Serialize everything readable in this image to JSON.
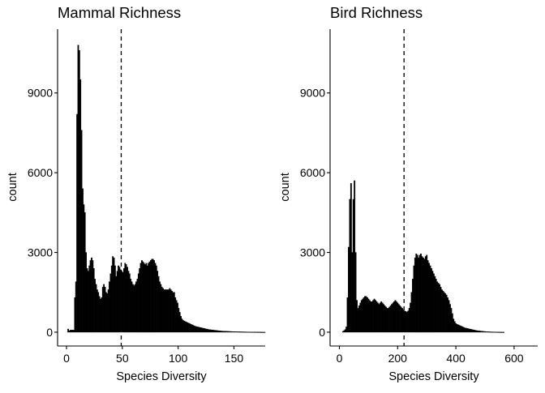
{
  "chart_data": [
    {
      "type": "bar",
      "title": "Mammal Richness",
      "xlabel": "Species Diversity",
      "ylabel": "count",
      "xlim": [
        -8,
        178
      ],
      "ylim": [
        -520,
        11400
      ],
      "xticks": [
        "0",
        "50",
        "100",
        "150"
      ],
      "xtick_values": [
        0,
        50,
        100,
        150
      ],
      "yticks": [
        "0",
        "3000",
        "6000",
        "9000"
      ],
      "ytick_values": [
        0,
        3000,
        6000,
        9000
      ],
      "reference_line_x": 49,
      "reference_line_style": "dashed",
      "bin_width": 1,
      "series": [
        {
          "x_start": 0,
          "values": [
            0,
            120,
            50,
            80,
            80,
            80,
            80,
            1300,
            1900,
            8200,
            10800,
            10600,
            9500,
            7600,
            5400,
            4800,
            4500,
            3000,
            2400,
            2300,
            2500,
            2700,
            2800,
            2700,
            2400,
            2000,
            1800,
            1600,
            1500,
            1350,
            1250,
            1300,
            1700,
            1800,
            1700,
            1500,
            1450,
            1600,
            1900,
            2200,
            2500,
            2850,
            2800,
            2500,
            2100,
            2300,
            2500,
            2450,
            2350,
            2300,
            2250,
            2400,
            2600,
            2550,
            2450,
            2300,
            2200,
            2000,
            1900,
            1800,
            1750,
            1800,
            1900,
            2000,
            2200,
            2400,
            2600,
            2700,
            2650,
            2600,
            2550,
            2600,
            2500,
            2600,
            2650,
            2700,
            2750,
            2750,
            2700,
            2600,
            2500,
            2300,
            2100,
            1900,
            1800,
            1700,
            1650,
            1600,
            1600,
            1600,
            1600,
            1600,
            1650,
            1600,
            1550,
            1500,
            1500,
            1300,
            1200,
            1100,
            900,
            750,
            600,
            500,
            450,
            420,
            400,
            380,
            360,
            340,
            320,
            300,
            280,
            260,
            240,
            220,
            210,
            200,
            190,
            180,
            170,
            160,
            150,
            140,
            130,
            120,
            110,
            100,
            95,
            90,
            85,
            80,
            75,
            70,
            65,
            60,
            55,
            50,
            45,
            42,
            40,
            38,
            36,
            34,
            32,
            30,
            28,
            26,
            24,
            22,
            20,
            19,
            18,
            17,
            16,
            15,
            14,
            13,
            12,
            11,
            10,
            9,
            8,
            8,
            7,
            7,
            6,
            6,
            5,
            5,
            4,
            4,
            3,
            3,
            2,
            2,
            2,
            1
          ]
        }
      ]
    },
    {
      "type": "bar",
      "title": "Bird Richness",
      "xlabel": "Species Diversity",
      "ylabel": "count",
      "xlim": [
        -32,
        681
      ],
      "ylim": [
        -520,
        11400
      ],
      "xticks": [
        "0",
        "200",
        "400",
        "600"
      ],
      "xtick_values": [
        0,
        200,
        400,
        600
      ],
      "yticks": [
        "0",
        "3000",
        "6000",
        "9000"
      ],
      "ytick_values": [
        0,
        3000,
        6000,
        9000
      ],
      "reference_line_x": 222,
      "reference_line_style": "dashed",
      "bin_width": 4,
      "series": [
        {
          "x_start": 10,
          "values": [
            30,
            60,
            100,
            200,
            1300,
            3200,
            5000,
            5600,
            3000,
            5000,
            5700,
            3000,
            1200,
            900,
            1000,
            1100,
            1200,
            1250,
            1300,
            1350,
            1350,
            1300,
            1250,
            1200,
            1150,
            1150,
            1200,
            1250,
            1200,
            1150,
            1100,
            1050,
            1100,
            1150,
            1100,
            1050,
            1000,
            950,
            900,
            900,
            950,
            1000,
            1050,
            1100,
            1150,
            1200,
            1150,
            1100,
            1050,
            1000,
            950,
            900,
            850,
            800,
            780,
            760,
            800,
            900,
            1100,
            1500,
            2000,
            2500,
            2800,
            2950,
            2900,
            2800,
            2900,
            2950,
            2850,
            2800,
            2750,
            2850,
            2900,
            2700,
            2600,
            2500,
            2400,
            2300,
            2200,
            2100,
            2000,
            1900,
            1850,
            1800,
            1700,
            1600,
            1550,
            1500,
            1450,
            1400,
            1300,
            1200,
            1050,
            900,
            700,
            500,
            400,
            330,
            300,
            280,
            260,
            240,
            220,
            200,
            180,
            160,
            150,
            140,
            130,
            120,
            110,
            100,
            90,
            80,
            70,
            60,
            55,
            50,
            45,
            40,
            35,
            30,
            25,
            20,
            18,
            16,
            14,
            12,
            10,
            9,
            8,
            7,
            6,
            5,
            4,
            3,
            2,
            2,
            1
          ]
        }
      ]
    }
  ]
}
